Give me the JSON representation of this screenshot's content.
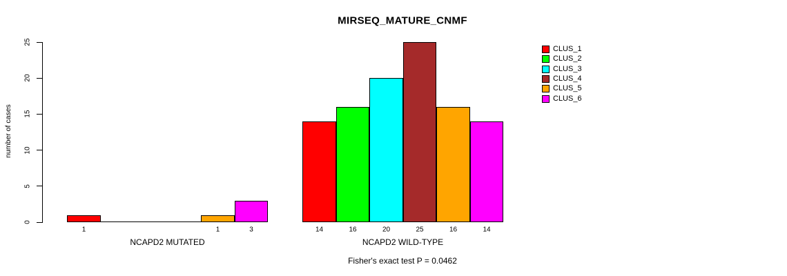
{
  "chart_data": {
    "type": "bar",
    "title": "MIRSEQ_MATURE_CNMF",
    "ylabel": "number of cases",
    "ylim": [
      0,
      25
    ],
    "yticks": [
      0,
      5,
      10,
      15,
      20,
      25
    ],
    "grid": false,
    "legend_position": "right",
    "clusters": [
      "CLUS_1",
      "CLUS_2",
      "CLUS_3",
      "CLUS_4",
      "CLUS_5",
      "CLUS_6"
    ],
    "colors": [
      "#FF0000",
      "#00FF00",
      "#00FFFF",
      "#A52A2A",
      "#FFA500",
      "#FF00FF"
    ],
    "groups": [
      {
        "label": "NCAPD2 MUTATED",
        "values": [
          1,
          0,
          0,
          0,
          1,
          3
        ]
      },
      {
        "label": "NCAPD2 WILD-TYPE",
        "values": [
          14,
          16,
          20,
          25,
          16,
          14
        ]
      }
    ],
    "annotation": "Fisher's exact test P = 0.0462"
  }
}
